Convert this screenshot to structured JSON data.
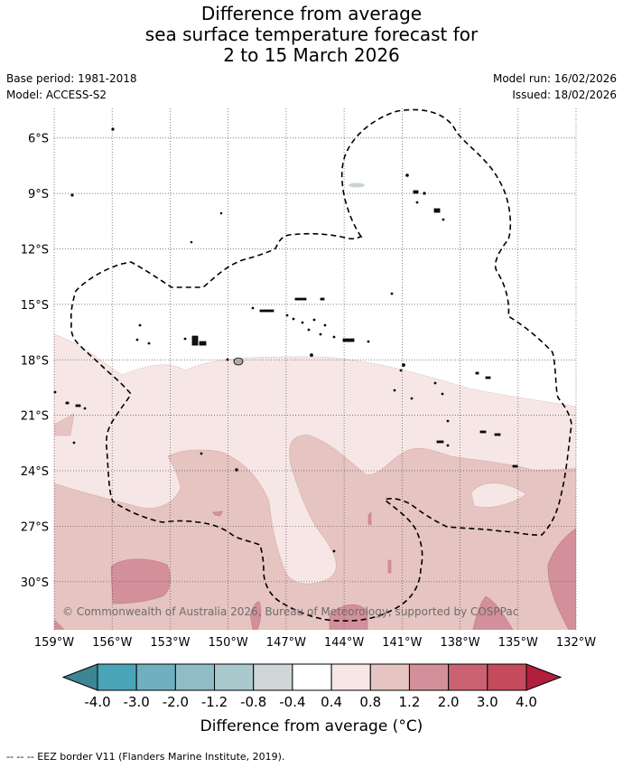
{
  "title": {
    "line1": "Difference from average",
    "line2": "sea surface temperature forecast for",
    "line3": "2 to 15 March 2026"
  },
  "meta": {
    "base_period": "Base period: 1981-2018",
    "model": "Model: ACCESS-S2",
    "model_run": "Model run: 16/02/2026",
    "issued": "Issued: 18/02/2026"
  },
  "map": {
    "lat_labels": [
      "6°S",
      "9°S",
      "12°S",
      "15°S",
      "18°S",
      "21°S",
      "24°S",
      "27°S",
      "30°S"
    ],
    "lon_labels": [
      "159°W",
      "156°W",
      "153°W",
      "150°W",
      "147°W",
      "144°W",
      "141°W",
      "138°W",
      "135°W",
      "132°W"
    ],
    "lat_values": [
      -6,
      -9,
      -12,
      -15,
      -18,
      -21,
      -24,
      -27,
      -30
    ],
    "lon_values": [
      -159,
      -156,
      -153,
      -150,
      -147,
      -144,
      -141,
      -138,
      -135,
      -132
    ],
    "extent": {
      "lon_min": -159,
      "lon_max": -132,
      "lat_min": -32.6,
      "lat_max": -4.4
    },
    "copyright": "© Commonwealth of Australia 2026, Bureau of Meteorology, supported by COSPPac"
  },
  "colorbar": {
    "tick_labels": [
      "-4.0",
      "-3.0",
      "-2.0",
      "-1.2",
      "-0.8",
      "-0.4",
      "0.4",
      "0.8",
      "1.2",
      "2.0",
      "3.0",
      "4.0"
    ],
    "colors": [
      "#3d8592",
      "#4aa4b8",
      "#6fb0c0",
      "#8fbcc7",
      "#a9c9cd",
      "#cfd6d8",
      "#ffffff",
      "#f6e7e6",
      "#e6c4c1",
      "#d4909a",
      "#cb6272",
      "#c44a5c",
      "#b01f3c"
    ],
    "title": "Difference from average (",
    "title_unit": "°C)"
  },
  "legend": {
    "eez": "--  --  -- EEZ border V11 (Flanders Marine Institute, 2019)."
  }
}
